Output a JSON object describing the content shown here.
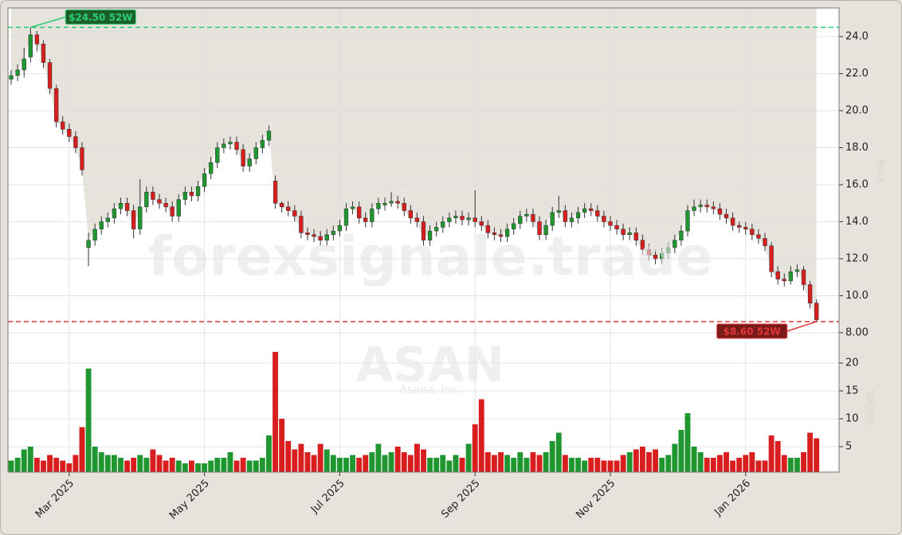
{
  "chart_data": {
    "type": "candlestick",
    "watermark": "forexsignale.trade",
    "symbol": "ASAN",
    "company": "Asana, Inc.",
    "y_label": "Price",
    "volume_label": "Volume",
    "up_color": "#1f9630",
    "down_color": "#d81e1e",
    "grid": true,
    "xlim": [
      -0.5,
      128.5
    ],
    "xticks": [
      {
        "value": 9,
        "label": "Mar 2025"
      },
      {
        "value": 30,
        "label": "May 2025"
      },
      {
        "value": 51,
        "label": "Jul 2025"
      },
      {
        "value": 72,
        "label": "Sep 2025"
      },
      {
        "value": 93,
        "label": "Nov 2025"
      },
      {
        "value": 114,
        "label": "Jan 2026"
      }
    ],
    "ylim": [
      7.61,
      25.55
    ],
    "yticks": [
      {
        "value": 8,
        "label": "8.00"
      },
      {
        "value": 10,
        "label": "10.0"
      },
      {
        "value": 12,
        "label": "12.0"
      },
      {
        "value": 14,
        "label": "14.0"
      },
      {
        "value": 16,
        "label": "16.0"
      },
      {
        "value": 18,
        "label": "18.0"
      },
      {
        "value": 20,
        "label": "20.0"
      },
      {
        "value": 22,
        "label": "22.0"
      },
      {
        "value": 24,
        "label": "24.0"
      }
    ],
    "volume_ylim": [
      0.43,
      24.14
    ],
    "volume_yticks": [
      5,
      10,
      15,
      20
    ],
    "annotations": [
      {
        "label": "$24.50 52W",
        "value": 24.5,
        "color": "#2ecc71"
      },
      {
        "label": "$8.60 52W",
        "value": 8.6,
        "color": "#e03838"
      }
    ],
    "open": [
      21.7,
      21.9,
      22.2,
      22.9,
      24.1,
      23.6,
      22.6,
      21.2,
      19.4,
      19.0,
      18.6,
      18.0,
      12.6,
      13.0,
      13.6,
      14.0,
      14.2,
      14.7,
      15.0,
      14.6,
      13.6,
      14.8,
      15.6,
      15.2,
      15.0,
      14.8,
      14.3,
      15.2,
      15.6,
      15.4,
      15.9,
      16.6,
      17.2,
      18.0,
      18.2,
      18.3,
      17.9,
      17.0,
      17.4,
      18.0,
      18.4,
      16.2,
      15.0,
      14.8,
      14.6,
      14.3,
      13.4,
      13.3,
      13.2,
      13.0,
      13.3,
      13.5,
      13.8,
      14.7,
      14.8,
      14.2,
      14.0,
      14.7,
      14.9,
      15.0,
      15.1,
      15.0,
      14.6,
      14.2,
      14.0,
      13.0,
      13.5,
      13.7,
      14.0,
      14.2,
      14.3,
      14.1,
      14.2,
      14.0,
      13.8,
      13.4,
      13.3,
      13.2,
      13.6,
      13.9,
      14.3,
      14.4,
      14.0,
      13.3,
      13.8,
      14.5,
      14.6,
      14.0,
      14.2,
      14.5,
      14.7,
      14.6,
      14.3,
      14.0,
      13.8,
      13.6,
      13.3,
      13.4,
      13.0,
      12.5,
      12.2,
      12.0,
      12.3,
      12.6,
      13.0,
      13.5,
      14.6,
      14.8,
      14.9,
      14.8,
      14.7,
      14.4,
      14.2,
      13.8,
      13.7,
      13.6,
      13.3,
      13.1,
      12.7,
      11.3,
      10.9,
      10.8,
      11.3,
      11.4,
      10.6,
      9.6
    ],
    "high": [
      22.2,
      22.5,
      23.4,
      24.5,
      24.3,
      23.8,
      22.8,
      21.4,
      19.7,
      19.3,
      18.9,
      18.3,
      13.4,
      13.9,
      14.3,
      14.5,
      15.0,
      15.3,
      15.3,
      14.9,
      16.3,
      15.9,
      15.9,
      15.5,
      15.3,
      15.1,
      15.5,
      15.9,
      15.9,
      16.2,
      16.9,
      17.5,
      18.3,
      18.5,
      18.6,
      18.6,
      18.2,
      17.7,
      18.3,
      18.7,
      19.2,
      16.5,
      15.1,
      15.1,
      14.9,
      14.6,
      13.7,
      13.6,
      13.5,
      13.6,
      13.8,
      14.1,
      15.0,
      15.1,
      15.1,
      14.5,
      15.0,
      15.3,
      15.3,
      15.6,
      15.4,
      15.3,
      14.9,
      14.5,
      14.3,
      13.8,
      14.0,
      14.3,
      14.5,
      14.6,
      14.6,
      14.5,
      15.7,
      14.3,
      14.1,
      13.7,
      13.6,
      13.9,
      14.2,
      14.6,
      14.7,
      14.7,
      14.3,
      14.1,
      14.8,
      15.4,
      14.9,
      14.5,
      14.8,
      15.0,
      15.0,
      14.9,
      14.6,
      14.3,
      14.1,
      13.9,
      13.7,
      13.7,
      13.3,
      12.8,
      12.5,
      12.6,
      12.9,
      13.3,
      13.8,
      14.9,
      15.2,
      15.2,
      15.2,
      15.1,
      15.0,
      14.7,
      14.5,
      14.0,
      14.0,
      13.9,
      13.6,
      13.4,
      12.9,
      11.6,
      11.2,
      11.6,
      11.7,
      11.6,
      10.8,
      9.8
    ],
    "low": [
      21.4,
      21.6,
      21.8,
      22.6,
      23.2,
      22.3,
      20.9,
      19.1,
      18.7,
      18.3,
      17.7,
      16.5,
      11.6,
      12.7,
      13.3,
      13.7,
      13.9,
      14.4,
      14.3,
      13.1,
      13.3,
      14.5,
      14.9,
      14.7,
      14.5,
      14.0,
      14.0,
      14.9,
      15.1,
      15.1,
      15.6,
      16.3,
      16.9,
      17.7,
      17.9,
      17.6,
      16.7,
      16.7,
      17.1,
      17.7,
      18.1,
      14.7,
      14.5,
      14.3,
      14.0,
      13.1,
      13.0,
      12.9,
      12.7,
      12.7,
      13.0,
      13.2,
      13.5,
      14.4,
      13.9,
      13.7,
      13.7,
      14.4,
      14.6,
      14.8,
      14.7,
      14.3,
      13.9,
      13.7,
      12.7,
      12.7,
      13.2,
      13.4,
      13.7,
      13.9,
      13.8,
      13.8,
      13.7,
      13.5,
      13.1,
      13.0,
      12.9,
      12.9,
      13.3,
      13.6,
      14.0,
      13.7,
      13.0,
      13.0,
      13.5,
      14.2,
      13.7,
      13.7,
      13.9,
      14.2,
      14.3,
      14.0,
      13.7,
      13.5,
      13.3,
      13.0,
      13.0,
      12.7,
      12.2,
      11.9,
      11.7,
      11.7,
      12.0,
      12.3,
      12.7,
      13.2,
      14.3,
      14.5,
      14.5,
      14.4,
      14.1,
      13.9,
      13.5,
      13.4,
      13.3,
      13.0,
      12.8,
      12.4,
      11.0,
      10.6,
      10.5,
      10.6,
      11.0,
      10.3,
      9.3,
      8.6
    ],
    "close": [
      21.9,
      22.2,
      22.8,
      24.1,
      23.6,
      22.6,
      21.2,
      19.4,
      19.0,
      18.6,
      18.0,
      16.8,
      13.0,
      13.6,
      14.0,
      14.2,
      14.7,
      15.0,
      14.6,
      13.6,
      14.8,
      15.6,
      15.2,
      15.0,
      14.8,
      14.3,
      15.2,
      15.6,
      15.4,
      15.9,
      16.6,
      17.2,
      18.0,
      18.2,
      18.3,
      17.9,
      17.0,
      17.4,
      18.0,
      18.4,
      18.9,
      15.0,
      14.8,
      14.6,
      14.3,
      13.4,
      13.3,
      13.2,
      13.0,
      13.3,
      13.5,
      13.8,
      14.7,
      14.8,
      14.2,
      14.0,
      14.7,
      15.0,
      15.0,
      15.1,
      15.0,
      14.6,
      14.2,
      14.0,
      13.0,
      13.5,
      13.7,
      14.0,
      14.2,
      14.3,
      14.1,
      14.2,
      14.0,
      13.8,
      13.4,
      13.3,
      13.2,
      13.6,
      13.9,
      14.3,
      14.4,
      14.0,
      13.3,
      13.8,
      14.5,
      14.6,
      14.0,
      14.2,
      14.5,
      14.7,
      14.6,
      14.3,
      14.0,
      13.8,
      13.6,
      13.3,
      13.4,
      13.0,
      12.5,
      12.2,
      12.0,
      12.3,
      12.6,
      13.0,
      13.5,
      14.6,
      14.8,
      14.9,
      14.8,
      14.7,
      14.4,
      14.2,
      13.8,
      13.7,
      13.6,
      13.3,
      13.1,
      12.7,
      11.3,
      10.9,
      10.8,
      11.3,
      11.4,
      10.6,
      9.6,
      8.7
    ],
    "volume": [
      2.5,
      3,
      4.5,
      5,
      3,
      2.5,
      3.5,
      3,
      2.5,
      2,
      3.5,
      8.5,
      19,
      5,
      4,
      3.5,
      3.5,
      3,
      2.5,
      3,
      3.5,
      3,
      4.5,
      3.5,
      2.5,
      3,
      2.5,
      2,
      2.5,
      2,
      2,
      2.5,
      3,
      3,
      4,
      2.5,
      3,
      2.5,
      2.5,
      3,
      7,
      22,
      10,
      6,
      4.5,
      5.5,
      4,
      3.5,
      5.5,
      4.5,
      3.5,
      3,
      3,
      3.5,
      3,
      3.5,
      4,
      5.5,
      3.5,
      4,
      5,
      4,
      3.5,
      5.5,
      4.5,
      3,
      3,
      3.5,
      2.5,
      3.5,
      3,
      5.5,
      9,
      13.5,
      4,
      3.5,
      4,
      3.5,
      3,
      4,
      3,
      4,
      3.5,
      4,
      6,
      7.5,
      3.5,
      3,
      3,
      2.5,
      3,
      3,
      2.5,
      2.5,
      2.5,
      3.5,
      4,
      4.5,
      5,
      4,
      4.5,
      3,
      3.5,
      5.5,
      8,
      11,
      5,
      4,
      3,
      3,
      3.5,
      4,
      2.5,
      3,
      3.5,
      4,
      2.5,
      2.5,
      7,
      6,
      3.5,
      3,
      3,
      4,
      7.5,
      6.5
    ]
  }
}
